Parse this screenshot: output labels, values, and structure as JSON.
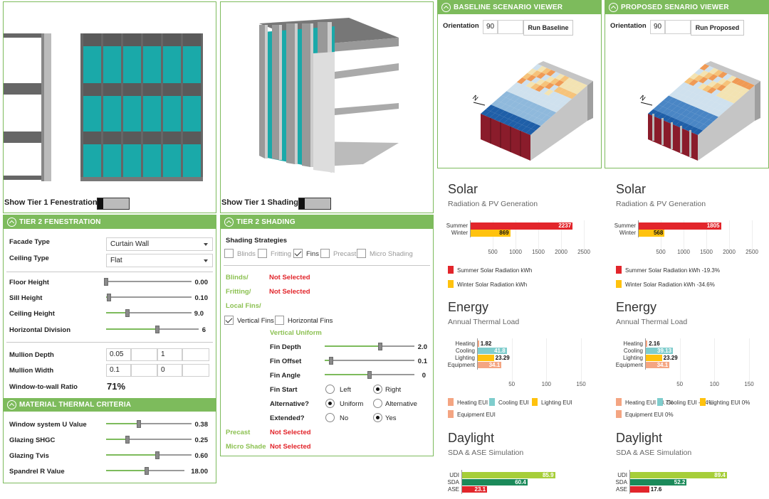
{
  "fenestration_view": {
    "toggle_label": "Show Tier 1 Fenestration"
  },
  "shading_view": {
    "toggle_label": "Show Tier 1 Shading"
  },
  "tier2_fenestration": {
    "title": "TIER 2 FENESTRATION",
    "facade_type": {
      "label": "Facade Type",
      "value": "Curtain Wall"
    },
    "ceiling_type": {
      "label": "Ceiling Type",
      "value": "Flat"
    },
    "floor_height": {
      "label": "Floor Height",
      "value": "0.00",
      "level": 0.0
    },
    "sill_height": {
      "label": "Sill Height",
      "value": "0.10",
      "level": 0.03
    },
    "ceiling_height": {
      "label": "Ceiling Height",
      "value": "9.0",
      "level": 0.25
    },
    "horizontal_division": {
      "label": "Horizontal Division",
      "value": "6",
      "level": 0.55
    },
    "mullion_depth": {
      "label": "Mullion Depth",
      "values": [
        "0.05",
        "",
        "1",
        ""
      ]
    },
    "mullion_width": {
      "label": "Mullion Width",
      "values": [
        "0.1",
        "",
        "0",
        ""
      ]
    },
    "wwr": {
      "label": "Window-to-wall Ratio",
      "value": "71%"
    }
  },
  "material_thermal": {
    "title": "MATERIAL THERMAL CRITERIA",
    "u_value": {
      "label": "Window system U Value",
      "value": "0.38",
      "level": 0.38
    },
    "shgc": {
      "label": "Glazing SHGC",
      "value": "0.25",
      "level": 0.25
    },
    "tvis": {
      "label": "Glazing Tvis",
      "value": "0.60",
      "level": 0.6
    },
    "spandrel": {
      "label": "Spandrel R Value",
      "value": "18.00",
      "level": 0.52
    }
  },
  "tier2_shading": {
    "title": "TIER 2 SHADING",
    "strategies_label": "Shading Strategies",
    "strategies": [
      {
        "label": "Blinds",
        "checked": false
      },
      {
        "label": "Fritting",
        "checked": false
      },
      {
        "label": "Fins",
        "checked": true
      },
      {
        "label": "Precast",
        "checked": false
      },
      {
        "label": "Micro Shading",
        "checked": false
      }
    ],
    "blinds": {
      "label": "Blinds/",
      "status": "Not Selected"
    },
    "fritting": {
      "label": "Fritting/",
      "status": "Not Selected"
    },
    "local_fins_label": "Local Fins/",
    "vertical_fins": "Vertical Fins",
    "horizontal_fins": "Horizontal Fins",
    "vertical_uniform": "Vertical Uniform",
    "fin_depth": {
      "label": "Fin Depth",
      "value": "2.0",
      "level": 0.62
    },
    "fin_offset": {
      "label": "Fin Offset",
      "value": "0.1",
      "level": 0.07
    },
    "fin_angle": {
      "label": "Fin Angle",
      "value": "0",
      "level": 0.5
    },
    "fin_start": {
      "label": "Fin Start",
      "options": [
        "Left",
        "Right"
      ],
      "selected": "Right"
    },
    "alternative": {
      "label": "Alternative?",
      "options": [
        "Uniform",
        "Alternative"
      ],
      "selected": "Uniform"
    },
    "extended": {
      "label": "Extended?",
      "options": [
        "No",
        "Yes"
      ],
      "selected": "Yes"
    },
    "precast": {
      "label": "Precast",
      "status": "Not Selected"
    },
    "micro_shade": {
      "label": "Micro Shade",
      "status": "Not Selected"
    }
  },
  "baseline": {
    "title": "BASELINE SCENARIO VIEWER",
    "orientation_label": "Orientation",
    "orientation_value": "90",
    "run_label": "Run Baseline"
  },
  "proposed": {
    "title": "PROPOSED SENARIO VIEWER",
    "orientation_label": "Orientation",
    "orientation_value": "90",
    "run_label": "Run Proposed"
  },
  "colors": {
    "green": "#7dbb5c",
    "summer": "#e2252b",
    "winter": "#ffc20e",
    "heating": "#f4a582",
    "cooling": "#7fcdcd",
    "lighting": "#ffc20e",
    "equipment": "#f4a582",
    "udi": "#a6ce39",
    "sda": "#1b8a5a",
    "ase": "#e2252b"
  },
  "chart_data": [
    {
      "type": "bar",
      "panel": "baseline",
      "title": "Solar",
      "subtitle": "Radiation & PV Generation",
      "categories": [
        "Summer",
        "Winter"
      ],
      "values": [
        2237,
        869
      ],
      "xlim": [
        0,
        2500
      ],
      "ticks": [
        500,
        1000,
        1500,
        2000,
        2500
      ],
      "legend": [
        "Summer Solar Radiation kWh",
        "Winter Solar Radiation kWh"
      ]
    },
    {
      "type": "bar",
      "panel": "proposed",
      "title": "Solar",
      "subtitle": "Radiation & PV Generation",
      "categories": [
        "Summer",
        "Winter"
      ],
      "values": [
        1805,
        568
      ],
      "xlim": [
        0,
        2500
      ],
      "ticks": [
        500,
        1000,
        1500,
        2000,
        2500
      ],
      "legend": [
        "Summer Solar Radiation kWh -19.3%",
        "Winter Solar Radiation kWh -34.6%"
      ]
    },
    {
      "type": "bar",
      "panel": "baseline",
      "title": "Energy",
      "subtitle": "Annual Thermal Load",
      "categories": [
        "Heating",
        "Cooling",
        "Lighting",
        "Equipment"
      ],
      "values": [
        1.82,
        41.8,
        23.29,
        34.1
      ],
      "xlim": [
        0,
        150
      ],
      "ticks": [
        50,
        100,
        150
      ],
      "legend": [
        "Heating EUI",
        "Cooling EUI",
        "Lighting EUI",
        "Equipment EUI"
      ]
    },
    {
      "type": "bar",
      "panel": "proposed",
      "title": "Energy",
      "subtitle": "Annual Thermal Load",
      "categories": [
        "Heating",
        "Cooling",
        "Lighting",
        "Equipment"
      ],
      "values": [
        2.16,
        39.13,
        23.29,
        34.1
      ],
      "xlim": [
        0,
        150
      ],
      "ticks": [
        50,
        100,
        150
      ],
      "legend": [
        "Heating EUI 18.7%",
        "Cooling EUI -6.4%",
        "Lighting EUI 0%",
        "Equipment EUI 0%"
      ]
    },
    {
      "type": "bar",
      "panel": "baseline",
      "title": "Daylight",
      "subtitle": "SDA & ASE Simulation",
      "categories": [
        "UDI",
        "SDA",
        "ASE"
      ],
      "values": [
        85.9,
        60.4,
        23.1
      ],
      "xlim": [
        0,
        100
      ]
    },
    {
      "type": "bar",
      "panel": "proposed",
      "title": "Daylight",
      "subtitle": "SDA & ASE Simulation",
      "categories": [
        "UDI",
        "SDA",
        "ASE"
      ],
      "values": [
        89.4,
        52.2,
        17.6
      ],
      "xlim": [
        0,
        100
      ]
    }
  ]
}
